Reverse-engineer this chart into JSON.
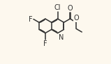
{
  "bg_color": "#fdf8ee",
  "bond_color": "#303030",
  "atom_label_color": "#303030",
  "bond_width": 1.1,
  "font_size": 7.0,
  "fig_width": 1.59,
  "fig_height": 0.92,
  "dpi": 100,
  "BL": 0.115,
  "xlim": [
    0,
    1
  ],
  "ylim": [
    0,
    1
  ]
}
